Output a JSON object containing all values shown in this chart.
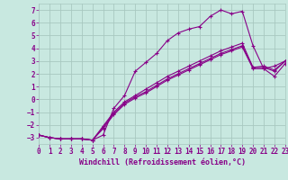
{
  "xlabel": "Windchill (Refroidissement éolien,°C)",
  "background_color": "#c8e8e0",
  "grid_color": "#a8c8c0",
  "line_color": "#880088",
  "xlim": [
    0,
    23
  ],
  "ylim": [
    -3.5,
    7.5
  ],
  "xticks": [
    0,
    1,
    2,
    3,
    4,
    5,
    6,
    7,
    8,
    9,
    10,
    11,
    12,
    13,
    14,
    15,
    16,
    17,
    18,
    19,
    20,
    21,
    22,
    23
  ],
  "yticks": [
    -3,
    -2,
    -1,
    0,
    1,
    2,
    3,
    4,
    5,
    6,
    7
  ],
  "lines": [
    {
      "x": [
        0,
        1,
        2,
        3,
        4,
        5,
        6,
        7,
        8,
        9,
        10,
        11,
        12,
        13,
        14,
        15,
        16,
        17,
        18,
        19,
        20,
        21,
        22,
        23
      ],
      "y": [
        -2.8,
        -3.0,
        -3.1,
        -3.1,
        -3.1,
        -3.2,
        -2.8,
        -0.7,
        0.3,
        2.2,
        2.9,
        3.6,
        4.6,
        5.2,
        5.5,
        5.7,
        6.5,
        7.0,
        6.7,
        6.9,
        4.2,
        2.4,
        2.6,
        3.0
      ]
    },
    {
      "x": [
        0,
        1,
        2,
        3,
        4,
        5,
        6,
        7,
        8,
        9,
        10,
        11,
        12,
        13,
        14,
        15,
        16,
        17,
        18,
        19,
        20,
        21,
        22,
        23
      ],
      "y": [
        -2.8,
        -3.0,
        -3.1,
        -3.1,
        -3.1,
        -3.2,
        -2.3,
        -1.2,
        -0.4,
        0.1,
        0.5,
        1.0,
        1.5,
        1.9,
        2.3,
        2.7,
        3.1,
        3.5,
        3.8,
        4.1,
        2.4,
        2.4,
        1.8,
        2.8
      ]
    },
    {
      "x": [
        0,
        1,
        2,
        3,
        4,
        5,
        6,
        7,
        8,
        9,
        10,
        11,
        12,
        13,
        14,
        15,
        16,
        17,
        18,
        19,
        20,
        21,
        22,
        23
      ],
      "y": [
        -2.8,
        -3.0,
        -3.1,
        -3.1,
        -3.1,
        -3.2,
        -2.2,
        -1.1,
        -0.3,
        0.2,
        0.6,
        1.1,
        1.6,
        2.0,
        2.4,
        2.8,
        3.2,
        3.6,
        3.9,
        4.2,
        2.5,
        2.5,
        2.2,
        3.0
      ]
    },
    {
      "x": [
        0,
        1,
        2,
        3,
        4,
        5,
        6,
        7,
        8,
        9,
        10,
        11,
        12,
        13,
        14,
        15,
        16,
        17,
        18,
        19,
        20,
        21,
        22,
        23
      ],
      "y": [
        -2.8,
        -3.0,
        -3.1,
        -3.1,
        -3.1,
        -3.2,
        -2.1,
        -1.0,
        -0.2,
        0.3,
        0.8,
        1.3,
        1.8,
        2.2,
        2.6,
        3.0,
        3.4,
        3.8,
        4.1,
        4.4,
        2.5,
        2.6,
        2.3,
        3.0
      ]
    }
  ]
}
